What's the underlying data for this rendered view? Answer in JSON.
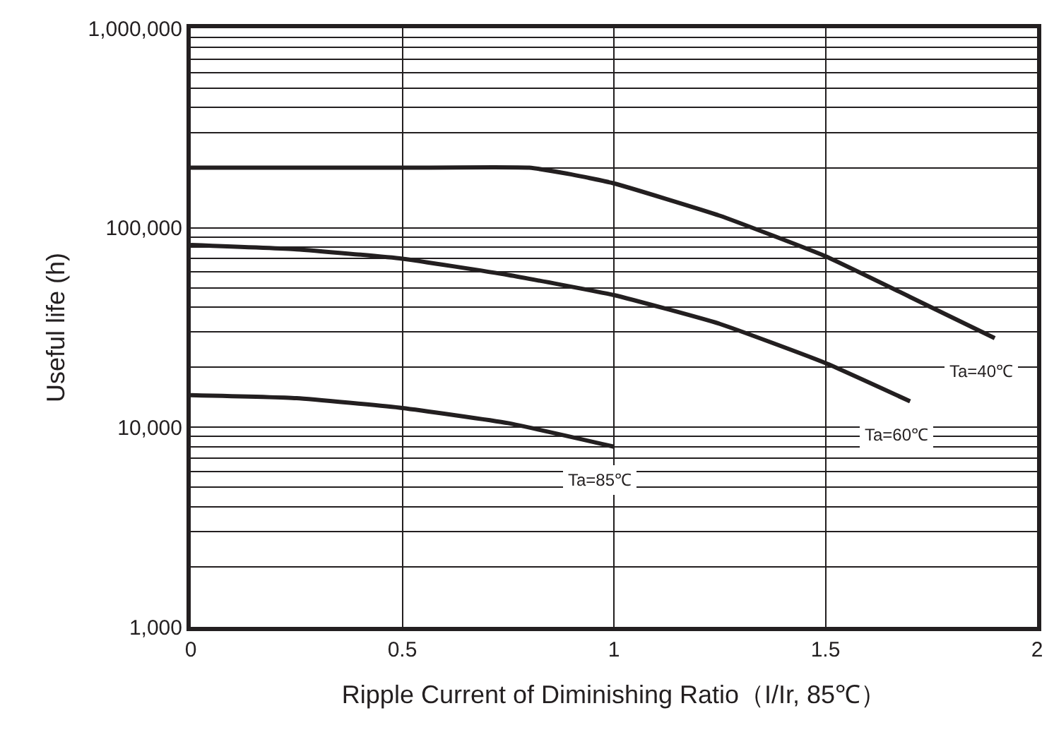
{
  "chart_data": {
    "type": "line",
    "xlabel": "Ripple Current of Diminishing Ratio（I/Ir, 85℃）",
    "ylabel": "Useful life (h)",
    "log": "y",
    "grid": true,
    "legend": false,
    "marker": "none",
    "line_style": "solid",
    "xlim": [
      0,
      2
    ],
    "xticks": [
      0,
      0.5,
      1,
      1.5,
      2
    ],
    "ylim": [
      1000,
      1000000
    ],
    "yticks": [
      {
        "value": 1000,
        "label": "1,000"
      },
      {
        "value": 2000,
        "label": null
      },
      {
        "value": 3000,
        "label": null
      },
      {
        "value": 4000,
        "label": null
      },
      {
        "value": 5000,
        "label": null
      },
      {
        "value": 6000,
        "label": null
      },
      {
        "value": 7000,
        "label": null
      },
      {
        "value": 8000,
        "label": null
      },
      {
        "value": 9000,
        "label": null
      },
      {
        "value": 10000,
        "label": "10,000"
      },
      {
        "value": 20000,
        "label": null
      },
      {
        "value": 30000,
        "label": null
      },
      {
        "value": 40000,
        "label": null
      },
      {
        "value": 50000,
        "label": null
      },
      {
        "value": 60000,
        "label": null
      },
      {
        "value": 70000,
        "label": null
      },
      {
        "value": 80000,
        "label": null
      },
      {
        "value": 90000,
        "label": null
      },
      {
        "value": 100000,
        "label": "100,000"
      },
      {
        "value": 200000,
        "label": null
      },
      {
        "value": 300000,
        "label": null
      },
      {
        "value": 400000,
        "label": null
      },
      {
        "value": 500000,
        "label": null
      },
      {
        "value": 600000,
        "label": null
      },
      {
        "value": 700000,
        "label": null
      },
      {
        "value": 800000,
        "label": null
      },
      {
        "value": 900000,
        "label": null
      },
      {
        "value": 1000000,
        "label": "1,000,000"
      }
    ],
    "series": [
      {
        "name": "Ta=40℃",
        "color": "#231f20",
        "x": [
          0,
          0.5,
          0.8,
          0.9,
          1,
          1.25,
          1.5,
          1.7,
          1.9
        ],
        "values": [
          200000,
          200000,
          200000,
          185000,
          167000,
          115000,
          72000,
          45000,
          28000
        ]
      },
      {
        "name": "Ta=60℃",
        "color": "#231f20",
        "x": [
          0,
          0.25,
          0.5,
          0.75,
          1,
          1.25,
          1.5,
          1.7
        ],
        "values": [
          82000,
          78000,
          70000,
          58000,
          46000,
          33000,
          21000,
          13500
        ]
      },
      {
        "name": "Ta=85℃",
        "color": "#231f20",
        "x": [
          0,
          0.25,
          0.5,
          0.75,
          1
        ],
        "values": [
          14500,
          14000,
          12500,
          10500,
          8000
        ]
      }
    ]
  }
}
